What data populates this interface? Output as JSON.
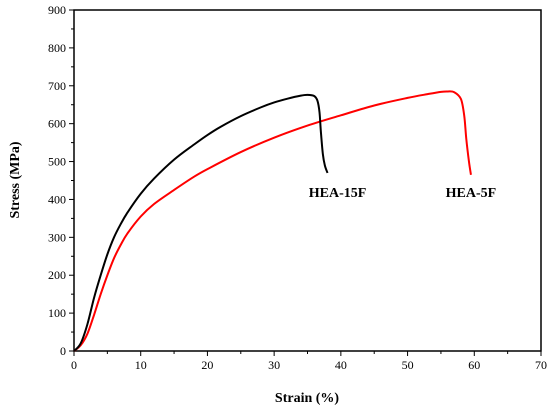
{
  "chart_data": {
    "type": "line",
    "xlabel": "Strain (%)",
    "ylabel": "Stress (MPa)",
    "xlim": [
      0,
      70
    ],
    "ylim": [
      0,
      900
    ],
    "xticks": [
      0,
      10,
      20,
      30,
      40,
      50,
      60,
      70
    ],
    "yticks": [
      0,
      100,
      200,
      300,
      400,
      500,
      600,
      700,
      800,
      900
    ],
    "grid": false,
    "legend": "none",
    "series": [
      {
        "name": "HEA-15F",
        "color": "#000000",
        "points": [
          [
            0,
            0
          ],
          [
            1,
            20
          ],
          [
            2,
            70
          ],
          [
            3,
            140
          ],
          [
            4,
            200
          ],
          [
            5,
            255
          ],
          [
            6,
            300
          ],
          [
            7,
            335
          ],
          [
            8,
            365
          ],
          [
            10,
            415
          ],
          [
            12,
            455
          ],
          [
            15,
            505
          ],
          [
            18,
            545
          ],
          [
            20,
            570
          ],
          [
            22,
            592
          ],
          [
            25,
            620
          ],
          [
            28,
            643
          ],
          [
            30,
            656
          ],
          [
            32,
            666
          ],
          [
            34,
            674
          ],
          [
            35,
            676
          ],
          [
            36,
            673
          ],
          [
            36.5,
            660
          ],
          [
            36.8,
            630
          ],
          [
            37,
            580
          ],
          [
            37.3,
            520
          ],
          [
            37.6,
            490
          ],
          [
            38,
            470
          ]
        ]
      },
      {
        "name": "HEA-5F",
        "color": "#ff0000",
        "points": [
          [
            0,
            0
          ],
          [
            1,
            15
          ],
          [
            2,
            45
          ],
          [
            3,
            95
          ],
          [
            4,
            150
          ],
          [
            5,
            200
          ],
          [
            6,
            245
          ],
          [
            7,
            280
          ],
          [
            8,
            310
          ],
          [
            10,
            355
          ],
          [
            12,
            388
          ],
          [
            15,
            425
          ],
          [
            18,
            460
          ],
          [
            20,
            480
          ],
          [
            25,
            525
          ],
          [
            30,
            563
          ],
          [
            35,
            595
          ],
          [
            40,
            622
          ],
          [
            45,
            648
          ],
          [
            50,
            668
          ],
          [
            53,
            678
          ],
          [
            55,
            684
          ],
          [
            56,
            685
          ],
          [
            57,
            683
          ],
          [
            58,
            665
          ],
          [
            58.5,
            620
          ],
          [
            58.8,
            560
          ],
          [
            59.2,
            500
          ],
          [
            59.5,
            465
          ]
        ]
      }
    ],
    "annotations": [
      {
        "text": "HEA-15F",
        "x": 39.5,
        "y": 420
      },
      {
        "text": "HEA-5F",
        "x": 59.5,
        "y": 420
      }
    ]
  }
}
